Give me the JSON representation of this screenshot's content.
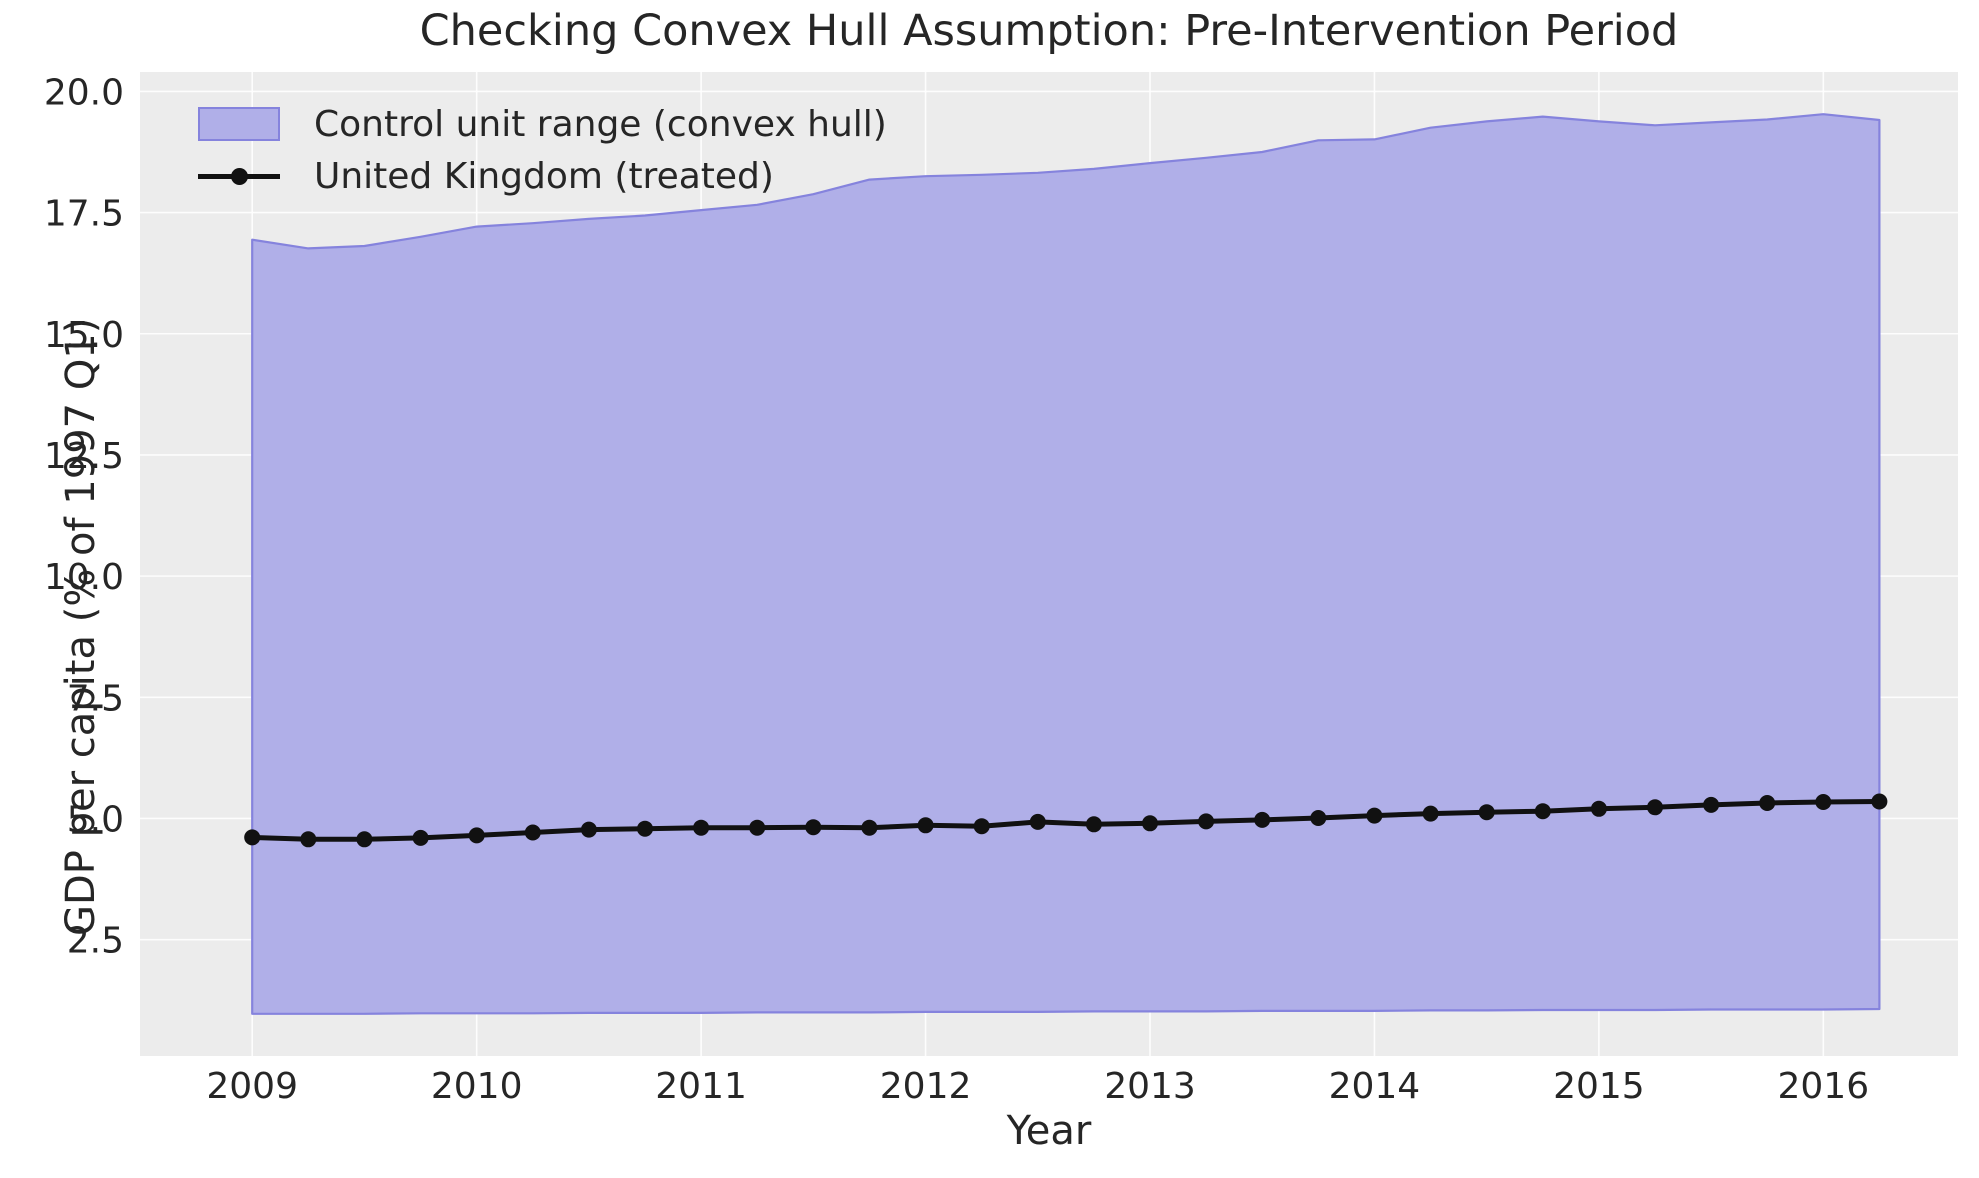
{
  "title": "Checking Convex Hull Assumption: Pre-Intervention Period",
  "colors": {
    "figure_background": "#ffffff",
    "axes_background": "#ececec",
    "gridline": "#ffffff",
    "band_fill": "#b0afe8",
    "band_edge": "#8583dd",
    "treated_line": "#111111",
    "text": "#262626"
  },
  "chart_data": {
    "type": "area",
    "title": "Checking Convex Hull Assumption: Pre-Intervention Period",
    "xlabel": "Year",
    "ylabel": "GDP per capita (% of 1997 Q1)",
    "xlim": [
      2008.5,
      2016.6
    ],
    "ylim": [
      0.1,
      20.4
    ],
    "xticks": [
      2009,
      2010,
      2011,
      2012,
      2013,
      2014,
      2015,
      2016
    ],
    "xtick_labels": [
      "2009",
      "2010",
      "2011",
      "2012",
      "2013",
      "2014",
      "2015",
      "2016"
    ],
    "yticks": [
      2.5,
      5.0,
      7.5,
      10.0,
      12.5,
      15.0,
      17.5,
      20.0
    ],
    "ytick_labels": [
      "2.5",
      "5.0",
      "7.5",
      "10.0",
      "12.5",
      "15.0",
      "17.5",
      "20.0"
    ],
    "grid": true,
    "legend_position": "upper left",
    "x": [
      2009.0,
      2009.25,
      2009.5,
      2009.75,
      2010.0,
      2010.25,
      2010.5,
      2010.75,
      2011.0,
      2011.25,
      2011.5,
      2011.75,
      2012.0,
      2012.25,
      2012.5,
      2012.75,
      2013.0,
      2013.25,
      2013.5,
      2013.75,
      2014.0,
      2014.25,
      2014.5,
      2014.75,
      2015.0,
      2015.25,
      2015.5,
      2015.75,
      2016.0,
      2016.25
    ],
    "series": [
      {
        "name": "Control unit range (convex hull)",
        "kind": "band",
        "upper": [
          16.94,
          16.76,
          16.81,
          17.0,
          17.21,
          17.28,
          17.37,
          17.44,
          17.55,
          17.66,
          17.88,
          18.18,
          18.25,
          18.28,
          18.32,
          18.4,
          18.52,
          18.63,
          18.75,
          18.99,
          19.01,
          19.25,
          19.38,
          19.48,
          19.38,
          19.3,
          19.36,
          19.42,
          19.53,
          19.41
        ],
        "lower": [
          0.97,
          0.97,
          0.97,
          0.98,
          0.98,
          0.98,
          0.99,
          0.99,
          0.99,
          1.0,
          1.0,
          1.0,
          1.01,
          1.01,
          1.01,
          1.02,
          1.02,
          1.02,
          1.03,
          1.03,
          1.03,
          1.04,
          1.04,
          1.05,
          1.05,
          1.05,
          1.06,
          1.06,
          1.06,
          1.07
        ]
      },
      {
        "name": "United Kingdom (treated)",
        "kind": "line_markers",
        "values": [
          4.61,
          4.57,
          4.57,
          4.6,
          4.65,
          4.71,
          4.77,
          4.79,
          4.81,
          4.81,
          4.82,
          4.81,
          4.86,
          4.84,
          4.93,
          4.88,
          4.9,
          4.94,
          4.97,
          5.01,
          5.06,
          5.1,
          5.13,
          5.15,
          5.2,
          5.23,
          5.28,
          5.32,
          5.34,
          5.35
        ]
      }
    ]
  }
}
